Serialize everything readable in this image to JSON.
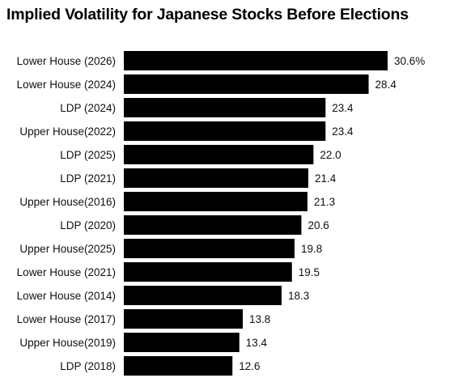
{
  "chart_data": {
    "type": "bar",
    "orientation": "horizontal",
    "title": "Implied Volatility for Japanese Stocks Before Elections",
    "categories": [
      "Lower House (2026)",
      "Lower House (2024)",
      "LDP (2024)",
      "Upper House(2022)",
      "LDP (2025)",
      "LDP (2021)",
      "Upper House(2016)",
      "LDP (2020)",
      "Upper House(2025)",
      "Lower House (2021)",
      "Lower House (2014)",
      "Lower House (2017)",
      "Upper House(2019)",
      "LDP (2018)"
    ],
    "values": [
      30.6,
      28.4,
      23.4,
      23.4,
      22.0,
      21.4,
      21.3,
      20.6,
      19.8,
      19.5,
      18.3,
      13.8,
      13.4,
      12.6
    ],
    "value_labels": [
      "30.6%",
      "28.4",
      "23.4",
      "23.4",
      "22.0",
      "21.4",
      "21.3",
      "20.6",
      "19.8",
      "19.5",
      "18.3",
      "13.8",
      "13.4",
      "12.6"
    ],
    "bar_color": "#000000",
    "grid": false,
    "legend": "none"
  }
}
